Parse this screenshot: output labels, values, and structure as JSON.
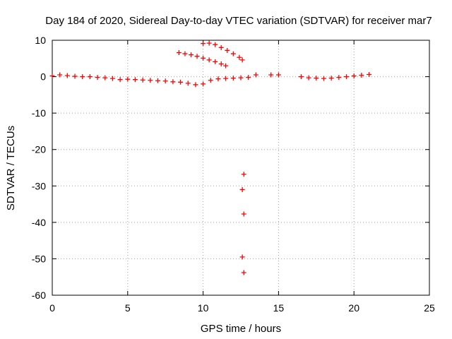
{
  "chart_data": {
    "type": "scatter",
    "title": "Day 184 of 2020, Sidereal Day-to-day VTEC variation (SDTVAR) for receiver mar7",
    "xlabel": "GPS time / hours",
    "ylabel": "SDTVAR / TECUs",
    "xlim": [
      0,
      25
    ],
    "ylim": [
      -60,
      10
    ],
    "xticks": [
      0,
      5,
      10,
      15,
      20,
      25
    ],
    "yticks": [
      -60,
      -50,
      -40,
      -30,
      -20,
      -10,
      0,
      10
    ],
    "grid": true,
    "marker": "plus",
    "color": "#ff0000",
    "series": [
      {
        "name": "main",
        "x": [
          0.0,
          0.5,
          1.0,
          1.5,
          2.0,
          2.5,
          3.0,
          3.5,
          4.0,
          4.5,
          5.0,
          5.5,
          6.0,
          6.5,
          7.0,
          7.5,
          8.0,
          8.5,
          9.0,
          9.5,
          10.0,
          10.5,
          11.0,
          11.5,
          12.0,
          12.5,
          13.0,
          13.5,
          14.5,
          15.0,
          16.5,
          17.0,
          17.5,
          18.0,
          18.5,
          19.0,
          19.5,
          20.0,
          20.5,
          21.0
        ],
        "y": [
          0.2,
          0.5,
          0.3,
          0.1,
          0.0,
          0.0,
          -0.2,
          -0.3,
          -0.5,
          -0.8,
          -0.7,
          -0.8,
          -0.9,
          -1.0,
          -1.1,
          -1.2,
          -1.4,
          -1.5,
          -1.8,
          -2.2,
          -2.0,
          -1.0,
          -0.6,
          -0.5,
          -0.4,
          -0.3,
          -0.2,
          0.5,
          0.5,
          0.5,
          0.0,
          -0.3,
          -0.4,
          -0.5,
          -0.4,
          -0.2,
          0.0,
          0.2,
          0.4,
          0.6
        ]
      },
      {
        "name": "arc-lower",
        "x": [
          8.4,
          8.8,
          9.2,
          9.6,
          10.0,
          10.4,
          10.8,
          11.2,
          11.5
        ],
        "y": [
          6.6,
          6.3,
          6.0,
          5.6,
          5.1,
          4.6,
          4.1,
          3.5,
          3.0
        ]
      },
      {
        "name": "arc-upper",
        "x": [
          10.0,
          10.4,
          10.8,
          11.2,
          11.6,
          12.0,
          12.4,
          12.6
        ],
        "y": [
          9.1,
          9.2,
          8.8,
          8.0,
          7.2,
          6.3,
          5.3,
          4.6
        ]
      },
      {
        "name": "outliers",
        "x": [
          12.7,
          12.6,
          12.7,
          12.6,
          12.7
        ],
        "y": [
          -26.8,
          -31.0,
          -37.7,
          -49.5,
          -53.8
        ]
      }
    ]
  }
}
